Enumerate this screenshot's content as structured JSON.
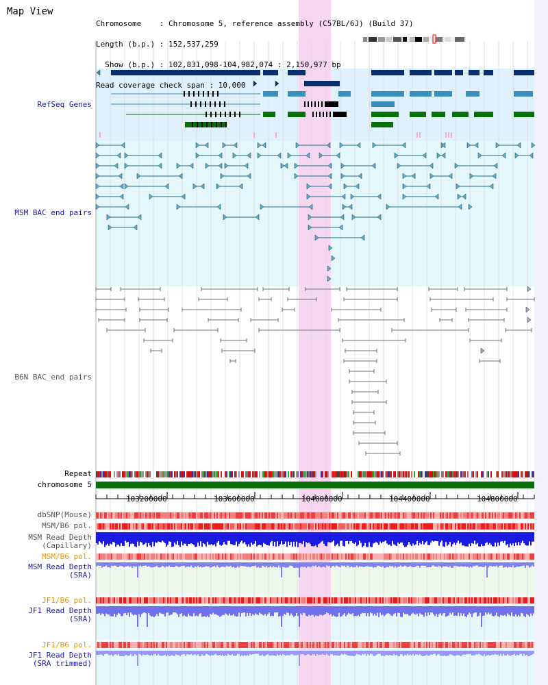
{
  "header": {
    "title": "Map View",
    "line1": "Chromosome    : Chromosome 5, reference assembly (C57BL/6J) (Build 37)",
    "line2": "Length (b.p.) : 152,537,259",
    "line3": "  Show (b.p.) : 102,831,098-104,982,074 : 2,150,977 bp",
    "line4": "Read coverage check span : 10,000"
  },
  "tracks": {
    "refseq": "RefSeq Genes",
    "msm_bac": "MSM BAC end pairs",
    "b6n_bac": "B6N BAC end pairs",
    "repeat": "Repeat",
    "chromosome": "chromosome 5",
    "dbsnp": "dbSNP(Mouse)",
    "msm_b6_pol_1": "MSM/B6 pol.",
    "msm_depth_cap_1": "MSM Read Depth",
    "msm_depth_cap_2": "(Capillary)",
    "msm_b6_pol_2": "MSM/B6 pol.",
    "msm_depth_sra_1": "MSM Read Depth",
    "msm_depth_sra_2": "(SRA)",
    "jf1_b6_pol_1": "JF1/B6 pol.",
    "jf1_depth_sra_1": "JF1 Read Depth",
    "jf1_depth_sra_2": "(SRA)",
    "jf1_b6_pol_2": "JF1/B6 pol.",
    "jf1_depth_trim_1": "JF1 Read Depth",
    "jf1_depth_trim_2": "(SRA trimmed)"
  },
  "axis": {
    "ticks": [
      "103200000",
      "103600000",
      "104000000",
      "104400000",
      "104800000"
    ]
  },
  "colors": {
    "gene_navy": "#0a2e6a",
    "gene_light": "#3a90b8",
    "gene_green": "#0a6e0a",
    "bac_teal": "#1a6e8a",
    "bac_gray": "#707070",
    "highlight": "#f7d6ef",
    "refseq_bg": "#dff2fb",
    "msm_bg": "#e4f8fb",
    "chrom_green": "#0a6e0a"
  }
}
